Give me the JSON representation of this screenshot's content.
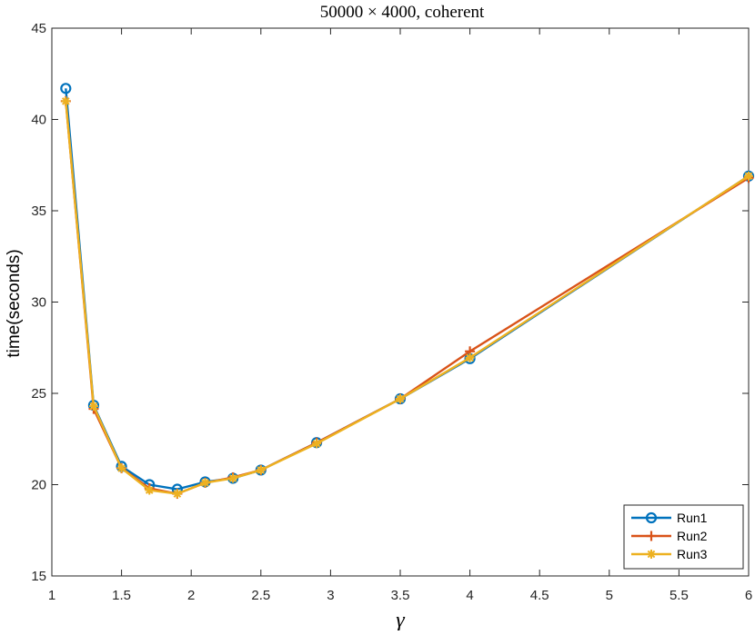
{
  "chart_data": {
    "type": "line",
    "title": "50000 × 4000, coherent",
    "xlabel": "γ",
    "ylabel": "time(seconds)",
    "xlim": [
      1,
      6
    ],
    "ylim": [
      15,
      45
    ],
    "xticks": [
      1,
      1.5,
      2,
      2.5,
      3,
      3.5,
      4,
      4.5,
      5,
      5.5,
      6
    ],
    "yticks": [
      15,
      20,
      25,
      30,
      35,
      40,
      45
    ],
    "xtick_labels": [
      "1",
      "1.5",
      "2",
      "2.5",
      "3",
      "3.5",
      "4",
      "4.5",
      "5",
      "5.5",
      "6"
    ],
    "ytick_labels": [
      "15",
      "20",
      "25",
      "30",
      "35",
      "40",
      "45"
    ],
    "grid": false,
    "legend_position": "bottom-right",
    "x": [
      1.1,
      1.3,
      1.5,
      1.7,
      1.9,
      2.1,
      2.3,
      2.5,
      2.9,
      3.5,
      4,
      6
    ],
    "series": [
      {
        "name": "Run1",
        "color": "#0072BD",
        "marker": "circle",
        "values": [
          41.7,
          24.35,
          21.0,
          20.0,
          19.75,
          20.15,
          20.35,
          20.8,
          22.3,
          24.7,
          26.9,
          36.9
        ]
      },
      {
        "name": "Run2",
        "color": "#D95319",
        "marker": "plus",
        "values": [
          41.0,
          24.15,
          20.9,
          19.8,
          19.5,
          20.1,
          20.4,
          20.8,
          22.3,
          24.7,
          27.3,
          36.8
        ]
      },
      {
        "name": "Run3",
        "color": "#EDB120",
        "marker": "asterisk",
        "values": [
          41.0,
          24.3,
          20.9,
          19.7,
          19.5,
          20.1,
          20.35,
          20.8,
          22.25,
          24.7,
          26.95,
          36.9
        ]
      }
    ]
  }
}
